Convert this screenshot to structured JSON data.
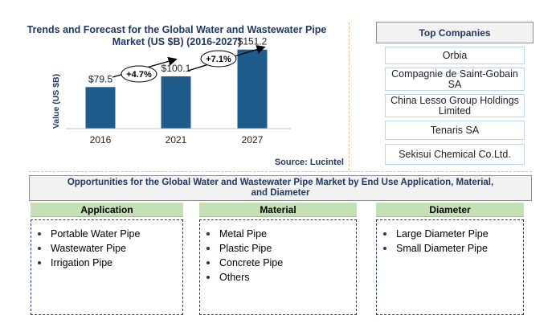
{
  "chart_data": {
    "type": "bar",
    "title": "Trends and Forecast for the Global Water  and Wastewater Pipe Market (US $B) (2016-2027)",
    "ylabel": "Value (US $B)",
    "categories": [
      "2016",
      "2021",
      "2027"
    ],
    "values": [
      79.5,
      100.1,
      151.2
    ],
    "value_labels": [
      "$79.5",
      "$100.1",
      "$151.2"
    ],
    "ylim": [
      0,
      200
    ],
    "bar_color": "#1f5c8b",
    "growth_annotations": [
      "+4.7%",
      "+7.1%"
    ],
    "source": "Source: Lucintel"
  },
  "top_companies": {
    "header": "Top Companies",
    "items": [
      "Orbia",
      "Compagnie de Saint-Gobain SA",
      "China Lesso Group Holdings Limited",
      "Tenaris SA",
      "Sekisui Chemical Co.Ltd."
    ]
  },
  "opportunities": {
    "header": "Opportunities for the Global Water and Wastewater Pipe Market  by End Use Application, Material, and Diameter",
    "columns": [
      {
        "title": "Application",
        "items": [
          "Portable Water Pipe",
          "Wastewater Pipe",
          "Irrigation Pipe"
        ]
      },
      {
        "title": "Material",
        "items": [
          "Metal Pipe",
          "Plastic Pipe",
          "Concrete Pipe",
          "Others"
        ]
      },
      {
        "title": "Diameter",
        "items": [
          "Large Diameter  Pipe",
          "Small Diameter Pipe"
        ]
      }
    ]
  }
}
